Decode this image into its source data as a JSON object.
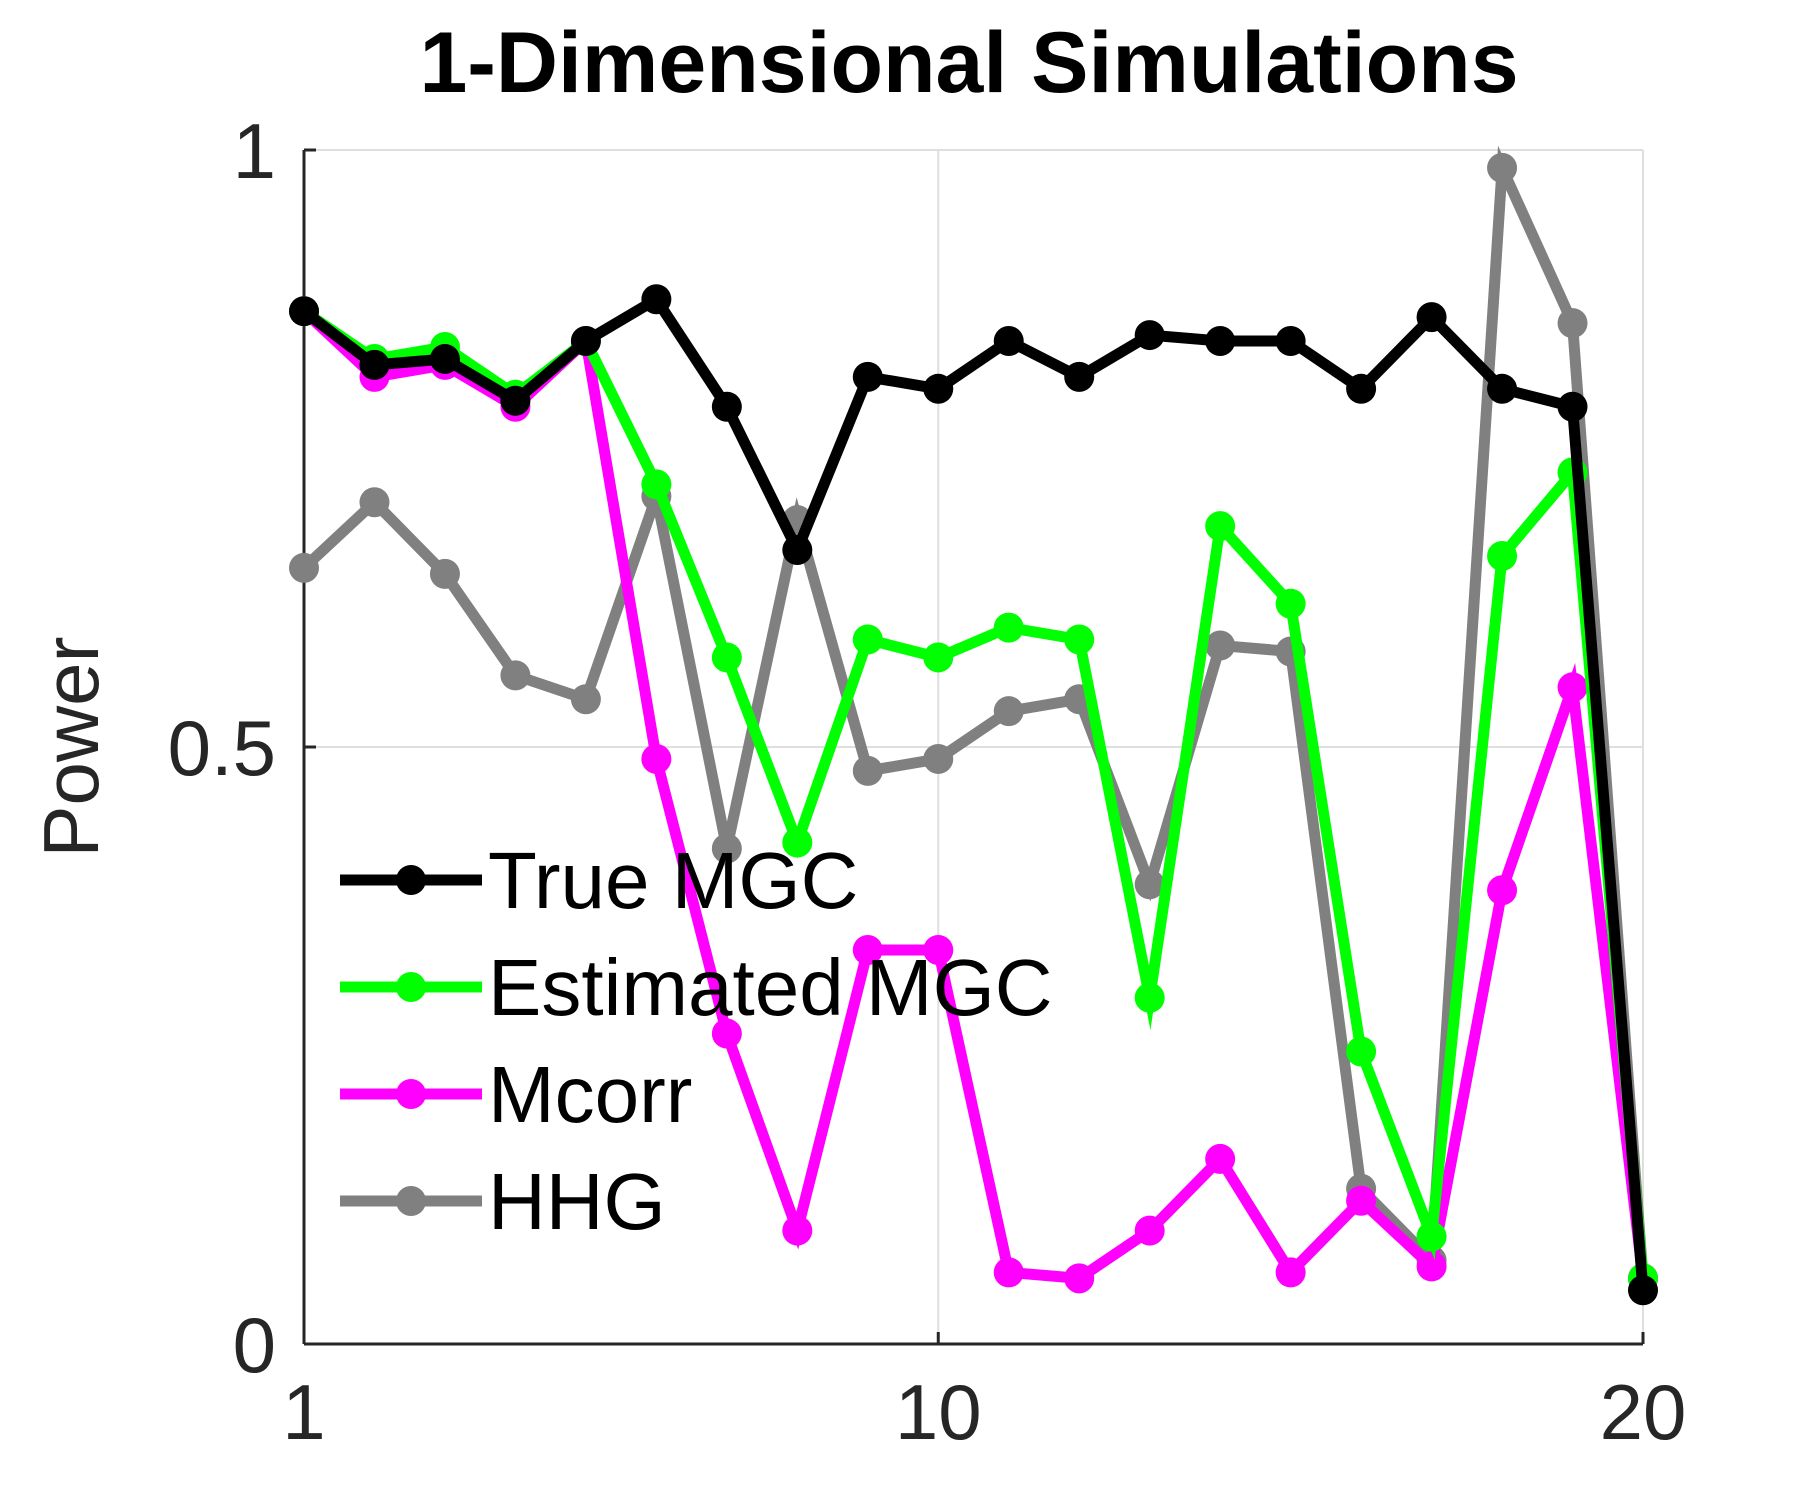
{
  "chart_data": {
    "type": "line",
    "title": "1-Dimensional Simulations",
    "xlabel": "",
    "ylabel": "Power",
    "xlim": [
      1,
      20
    ],
    "ylim": [
      0,
      1
    ],
    "xticks": [
      1,
      10,
      20
    ],
    "xtick_labels": [
      "1",
      "10",
      "20"
    ],
    "yticks": [
      0,
      0.5,
      1
    ],
    "ytick_labels": [
      "0",
      "0.5",
      "1"
    ],
    "grid": true,
    "legend": "center-left",
    "x": [
      1,
      2,
      3,
      4,
      5,
      6,
      7,
      8,
      9,
      10,
      11,
      12,
      13,
      14,
      15,
      16,
      17,
      18,
      19,
      20
    ],
    "series": [
      {
        "name": "True MGC",
        "color": "#000000",
        "values": [
          0.865,
          0.82,
          0.825,
          0.79,
          0.84,
          0.875,
          0.785,
          0.665,
          0.81,
          0.8,
          0.84,
          0.81,
          0.845,
          0.84,
          0.84,
          0.8,
          0.86,
          0.8,
          0.785,
          0.045
        ]
      },
      {
        "name": "Estimated MGC",
        "color": "#00ff00",
        "values": [
          0.865,
          0.825,
          0.835,
          0.795,
          0.84,
          0.72,
          0.575,
          0.42,
          0.59,
          0.575,
          0.6,
          0.59,
          0.29,
          0.685,
          0.62,
          0.245,
          0.09,
          0.66,
          0.73,
          0.055
        ]
      },
      {
        "name": "Mcorr",
        "color": "#ff00ff",
        "values": [
          0.865,
          0.81,
          0.82,
          0.785,
          0.84,
          0.49,
          0.26,
          0.095,
          0.33,
          0.33,
          0.06,
          0.055,
          0.095,
          0.155,
          0.06,
          0.12,
          0.065,
          0.38,
          0.55,
          0.055
        ]
      },
      {
        "name": "HHG",
        "color": "#808080",
        "values": [
          0.65,
          0.705,
          0.645,
          0.56,
          0.54,
          0.71,
          0.415,
          0.69,
          0.48,
          0.49,
          0.53,
          0.54,
          0.385,
          0.585,
          0.58,
          0.13,
          0.07,
          0.985,
          0.855,
          0.055
        ]
      }
    ]
  }
}
